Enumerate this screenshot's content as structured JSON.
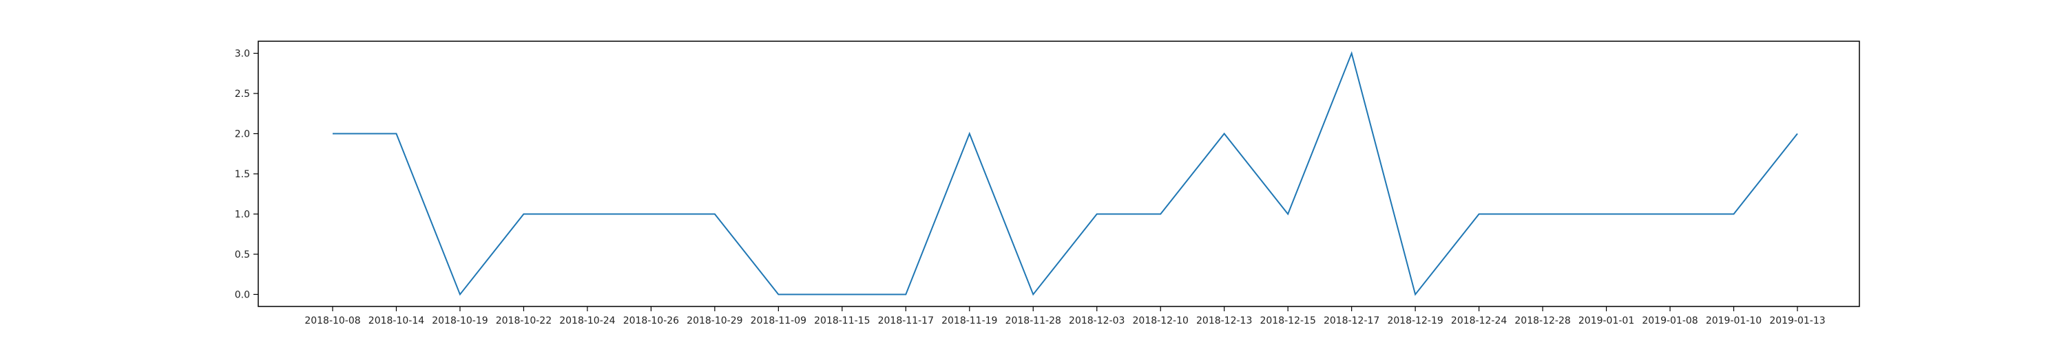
{
  "chart_data": {
    "type": "line",
    "categories": [
      "2018-10-08",
      "2018-10-14",
      "2018-10-19",
      "2018-10-22",
      "2018-10-24",
      "2018-10-26",
      "2018-10-29",
      "2018-11-09",
      "2018-11-15",
      "2018-11-17",
      "2018-11-19",
      "2018-11-28",
      "2018-12-03",
      "2018-12-10",
      "2018-12-13",
      "2018-12-15",
      "2018-12-17",
      "2018-12-19",
      "2018-12-24",
      "2018-12-28",
      "2019-01-01",
      "2019-01-08",
      "2019-01-10",
      "2019-01-13"
    ],
    "series": [
      {
        "values": [
          2,
          2,
          0,
          1,
          1,
          1,
          1,
          0,
          0,
          0,
          2,
          0,
          1,
          1,
          2,
          1,
          3,
          0,
          1,
          1,
          1,
          1,
          1,
          2
        ],
        "color": "#1f77b4"
      }
    ],
    "y_ticks": [
      "0.0",
      "0.5",
      "1.0",
      "1.5",
      "2.0",
      "2.5",
      "3.0"
    ],
    "ylim": [
      -0.15,
      3.15
    ],
    "grid": false,
    "legend": "none"
  }
}
